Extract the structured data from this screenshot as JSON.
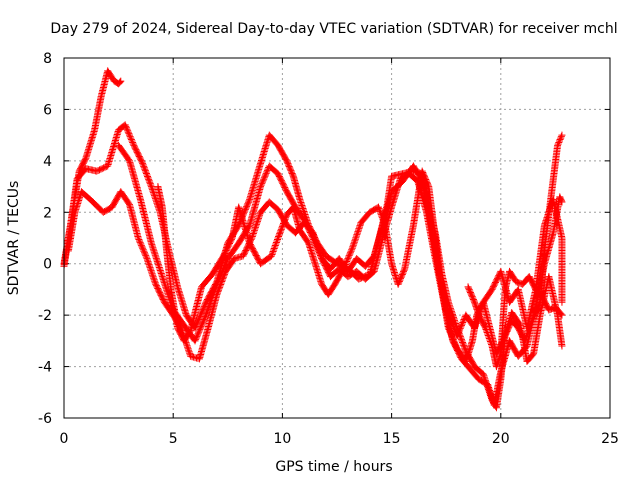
{
  "chart_data": {
    "type": "scatter",
    "title": "Day 279 of 2024, Sidereal Day-to-day VTEC variation (SDTVAR) for receiver mchl",
    "xlabel": "GPS time / hours",
    "ylabel": "SDTVAR / TECUs",
    "xlim": [
      0,
      25
    ],
    "ylim": [
      -6,
      8
    ],
    "xticks": [
      0,
      5,
      10,
      15,
      20,
      25
    ],
    "yticks": [
      -6,
      -4,
      -2,
      0,
      2,
      4,
      6,
      8
    ],
    "grid": true,
    "marker": "plus",
    "color": "#ff0000",
    "series": [
      {
        "points": [
          [
            0,
            -0.1
          ],
          [
            0.3,
            1.5
          ],
          [
            0.7,
            3.6
          ],
          [
            1.0,
            4.1
          ],
          [
            1.4,
            5.2
          ],
          [
            1.7,
            6.5
          ],
          [
            2.0,
            7.5
          ],
          [
            2.3,
            7.1
          ],
          [
            2.5,
            7.0
          ],
          [
            2.6,
            7.1
          ]
        ]
      },
      {
        "points": [
          [
            0,
            0.0
          ],
          [
            0.3,
            1.5
          ],
          [
            0.6,
            3.3
          ],
          [
            1.0,
            3.7
          ],
          [
            1.5,
            3.6
          ],
          [
            2.0,
            3.8
          ],
          [
            2.5,
            5.2
          ],
          [
            2.8,
            5.4
          ],
          [
            3.2,
            4.6
          ],
          [
            3.6,
            3.9
          ],
          [
            4.0,
            3.0
          ],
          [
            4.4,
            2.0
          ],
          [
            4.8,
            0.5
          ],
          [
            5.2,
            -0.9
          ],
          [
            5.6,
            -2.0
          ],
          [
            6.0,
            -2.5
          ],
          [
            6.5,
            -1.5
          ],
          [
            7.0,
            -0.7
          ],
          [
            7.5,
            0.8
          ],
          [
            8.0,
            1.5
          ],
          [
            8.5,
            2.5
          ],
          [
            9.0,
            3.9
          ],
          [
            9.4,
            5.0
          ],
          [
            9.8,
            4.6
          ],
          [
            10.2,
            4.0
          ],
          [
            10.5,
            3.4
          ],
          [
            10.8,
            2.5
          ],
          [
            11.2,
            1.5
          ],
          [
            11.6,
            0.8
          ],
          [
            12.0,
            0.3
          ],
          [
            12.5,
            0.0
          ],
          [
            13.0,
            -0.2
          ],
          [
            13.5,
            -0.6
          ],
          [
            14.0,
            -0.4
          ],
          [
            14.4,
            0.9
          ],
          [
            14.8,
            2.3
          ],
          [
            15.0,
            3.4
          ],
          [
            15.5,
            3.5
          ],
          [
            16.0,
            3.6
          ],
          [
            16.4,
            3.5
          ],
          [
            16.7,
            2.2
          ],
          [
            17.0,
            1.2
          ],
          [
            17.3,
            -0.4
          ],
          [
            17.6,
            -1.5
          ],
          [
            18.0,
            -2.5
          ],
          [
            18.4,
            -3.4
          ],
          [
            18.8,
            -4.0
          ],
          [
            19.2,
            -4.3
          ],
          [
            19.6,
            -5.3
          ],
          [
            19.8,
            -5.6
          ],
          [
            20.0,
            -4.5
          ],
          [
            20.2,
            -2.8
          ],
          [
            20.5,
            -2.2
          ],
          [
            20.8,
            -2.5
          ],
          [
            21.1,
            -3.0
          ],
          [
            21.4,
            -2.3
          ],
          [
            21.8,
            -1.5
          ],
          [
            22.0,
            0.5
          ],
          [
            22.3,
            2.6
          ],
          [
            22.6,
            4.6
          ],
          [
            22.8,
            5.0
          ]
        ]
      },
      {
        "points": [
          [
            0.2,
            0.5
          ],
          [
            0.5,
            2.0
          ],
          [
            0.8,
            2.8
          ],
          [
            1.2,
            2.5
          ],
          [
            1.8,
            2.0
          ],
          [
            2.2,
            2.2
          ],
          [
            2.6,
            2.8
          ],
          [
            3.0,
            2.3
          ],
          [
            3.4,
            1.0
          ],
          [
            3.8,
            0.2
          ],
          [
            4.2,
            -0.8
          ],
          [
            4.6,
            -1.5
          ],
          [
            5.0,
            -2.0
          ],
          [
            5.4,
            -2.6
          ],
          [
            5.8,
            -3.6
          ],
          [
            6.2,
            -3.7
          ],
          [
            6.6,
            -2.5
          ],
          [
            7.0,
            -1.2
          ],
          [
            7.4,
            -0.3
          ],
          [
            7.8,
            0.2
          ],
          [
            8.2,
            0.3
          ],
          [
            8.6,
            1.0
          ],
          [
            9.0,
            2.0
          ],
          [
            9.4,
            2.4
          ],
          [
            9.8,
            2.1
          ],
          [
            10.2,
            1.5
          ],
          [
            10.6,
            1.2
          ],
          [
            11.0,
            1.6
          ],
          [
            11.4,
            1.2
          ],
          [
            11.8,
            0.2
          ],
          [
            12.2,
            -0.5
          ],
          [
            12.6,
            -0.2
          ],
          [
            13.0,
            -0.5
          ],
          [
            13.4,
            -0.3
          ],
          [
            13.8,
            -0.6
          ],
          [
            14.2,
            -0.3
          ],
          [
            14.6,
            1.0
          ],
          [
            15.0,
            2.2
          ],
          [
            15.4,
            3.3
          ],
          [
            15.8,
            3.5
          ],
          [
            16.2,
            3.2
          ],
          [
            16.6,
            2.0
          ],
          [
            17.0,
            0.2
          ],
          [
            17.4,
            -1.5
          ],
          [
            17.8,
            -3.0
          ],
          [
            18.2,
            -3.7
          ],
          [
            18.6,
            -4.1
          ],
          [
            19.0,
            -4.5
          ],
          [
            19.4,
            -4.7
          ],
          [
            19.7,
            -5.5
          ],
          [
            20.0,
            -4.2
          ],
          [
            20.4,
            -3.0
          ],
          [
            20.8,
            -3.6
          ],
          [
            21.2,
            -3.2
          ],
          [
            21.6,
            -1.7
          ],
          [
            22.0,
            0.0
          ],
          [
            22.4,
            1.2
          ],
          [
            22.7,
            2.6
          ],
          [
            22.8,
            2.4
          ]
        ]
      },
      {
        "points": [
          [
            2.5,
            4.6
          ],
          [
            3.0,
            4.0
          ],
          [
            3.5,
            2.5
          ],
          [
            4.0,
            0.8
          ],
          [
            4.5,
            -0.5
          ],
          [
            5.0,
            -1.8
          ],
          [
            5.5,
            -2.4
          ],
          [
            6.0,
            -3.0
          ],
          [
            6.5,
            -2.0
          ],
          [
            7.0,
            -0.8
          ],
          [
            7.5,
            0.2
          ],
          [
            8.0,
            0.8
          ],
          [
            8.5,
            1.5
          ],
          [
            9.0,
            3.0
          ],
          [
            9.4,
            3.8
          ],
          [
            9.8,
            3.5
          ],
          [
            10.2,
            2.8
          ],
          [
            10.6,
            2.2
          ],
          [
            11.0,
            1.7
          ],
          [
            11.4,
            1.0
          ],
          [
            11.8,
            0.2
          ],
          [
            12.2,
            -0.2
          ],
          [
            12.6,
            0.2
          ],
          [
            13.0,
            -0.3
          ],
          [
            13.4,
            0.2
          ],
          [
            13.8,
            -0.1
          ],
          [
            14.2,
            0.3
          ],
          [
            14.6,
            1.5
          ],
          [
            15.0,
            2.8
          ],
          [
            15.5,
            3.2
          ],
          [
            16.0,
            3.8
          ],
          [
            16.4,
            3.2
          ],
          [
            16.8,
            1.5
          ],
          [
            17.2,
            -0.5
          ],
          [
            17.6,
            -2.0
          ],
          [
            18.0,
            -2.8
          ],
          [
            18.4,
            -2.0
          ],
          [
            18.8,
            -2.5
          ],
          [
            19.2,
            -1.5
          ],
          [
            19.6,
            -1.0
          ],
          [
            20.0,
            -0.3
          ],
          [
            20.4,
            -1.5
          ],
          [
            20.8,
            -1.0
          ],
          [
            21.2,
            -2.5
          ],
          [
            21.6,
            -1.0
          ],
          [
            22.0,
            1.5
          ],
          [
            22.4,
            2.5
          ],
          [
            22.8,
            1.0
          ],
          [
            22.8,
            -1.5
          ]
        ]
      },
      {
        "points": [
          [
            4.3,
            3.0
          ],
          [
            4.5,
            2.2
          ],
          [
            4.7,
            0.5
          ],
          [
            4.9,
            -1.0
          ],
          [
            5.2,
            -2.5
          ],
          [
            5.5,
            -3.0
          ],
          [
            5.8,
            -2.6
          ],
          [
            6.0,
            -1.9
          ],
          [
            6.3,
            -0.9
          ],
          [
            6.8,
            -0.4
          ],
          [
            7.3,
            0.3
          ],
          [
            7.7,
            1.0
          ],
          [
            8.0,
            2.2
          ],
          [
            8.5,
            0.8
          ],
          [
            9.0,
            0.0
          ],
          [
            9.5,
            0.3
          ],
          [
            9.8,
            1.0
          ],
          [
            10.2,
            1.9
          ],
          [
            10.5,
            2.2
          ],
          [
            10.8,
            1.3
          ],
          [
            11.2,
            0.8
          ],
          [
            11.5,
            0.0
          ],
          [
            11.8,
            -0.8
          ],
          [
            12.1,
            -1.2
          ],
          [
            12.4,
            -0.8
          ],
          [
            12.8,
            -0.2
          ],
          [
            13.2,
            0.6
          ],
          [
            13.6,
            1.6
          ],
          [
            14.0,
            2.0
          ],
          [
            14.4,
            2.2
          ],
          [
            14.7,
            1.5
          ],
          [
            15.0,
            0.0
          ],
          [
            15.3,
            -0.8
          ],
          [
            15.6,
            -0.2
          ],
          [
            16.0,
            1.5
          ],
          [
            16.4,
            3.6
          ],
          [
            16.7,
            3.0
          ],
          [
            17.0,
            1.0
          ],
          [
            17.3,
            -1.0
          ],
          [
            17.6,
            -2.5
          ],
          [
            18.0,
            -3.3
          ],
          [
            18.4,
            -3.8
          ],
          [
            18.7,
            -3.0
          ],
          [
            18.9,
            -2.0
          ],
          [
            19.2,
            -1.5
          ],
          [
            19.5,
            -2.5
          ],
          [
            19.8,
            -3.5
          ],
          [
            20.1,
            -3.0
          ],
          [
            20.5,
            -1.9
          ],
          [
            20.9,
            -2.4
          ],
          [
            21.2,
            -3.8
          ],
          [
            21.5,
            -3.5
          ],
          [
            21.8,
            -2.0
          ],
          [
            22.2,
            -0.5
          ],
          [
            22.6,
            -2.0
          ],
          [
            22.8,
            -3.2
          ]
        ]
      },
      {
        "points": [
          [
            18.5,
            -0.9
          ],
          [
            18.8,
            -1.5
          ],
          [
            19.0,
            -2.0
          ],
          [
            19.3,
            -2.5
          ],
          [
            19.6,
            -3.2
          ],
          [
            19.8,
            -4.0
          ],
          [
            20.0,
            -3.5
          ],
          [
            20.2,
            -1.0
          ],
          [
            20.4,
            -0.3
          ],
          [
            20.7,
            -0.7
          ],
          [
            21.0,
            -0.8
          ],
          [
            21.3,
            -0.5
          ],
          [
            21.6,
            -1.0
          ],
          [
            21.9,
            -1.3
          ],
          [
            22.2,
            -1.8
          ],
          [
            22.5,
            -1.7
          ],
          [
            22.8,
            -2.0
          ]
        ]
      }
    ]
  }
}
